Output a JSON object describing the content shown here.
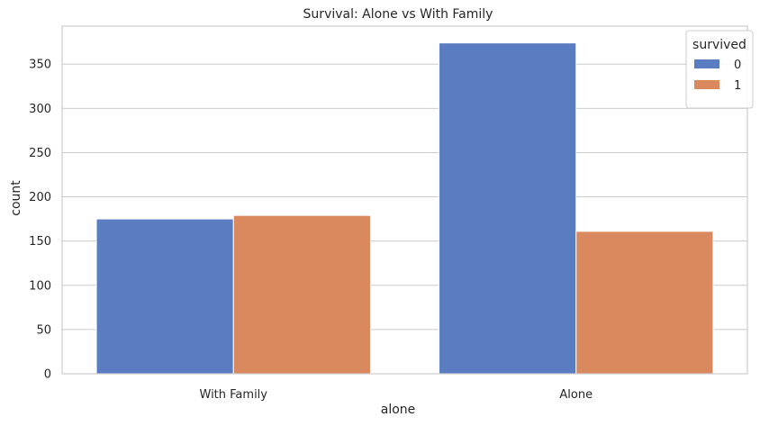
{
  "chart_data": {
    "type": "bar",
    "title": "Survival: Alone vs With Family",
    "xlabel": "alone",
    "ylabel": "count",
    "categories": [
      "With Family",
      "Alone"
    ],
    "series": [
      {
        "name": "0",
        "values": [
          175,
          374
        ],
        "color": "#5a7dc2"
      },
      {
        "name": "1",
        "values": [
          179,
          161
        ],
        "color": "#d9895d"
      }
    ],
    "ylim": [
      0,
      393
    ],
    "yticks": [
      0,
      50,
      100,
      150,
      200,
      250,
      300,
      350
    ],
    "grid": true,
    "legend": {
      "title": "survived",
      "placement": "top-right"
    }
  }
}
